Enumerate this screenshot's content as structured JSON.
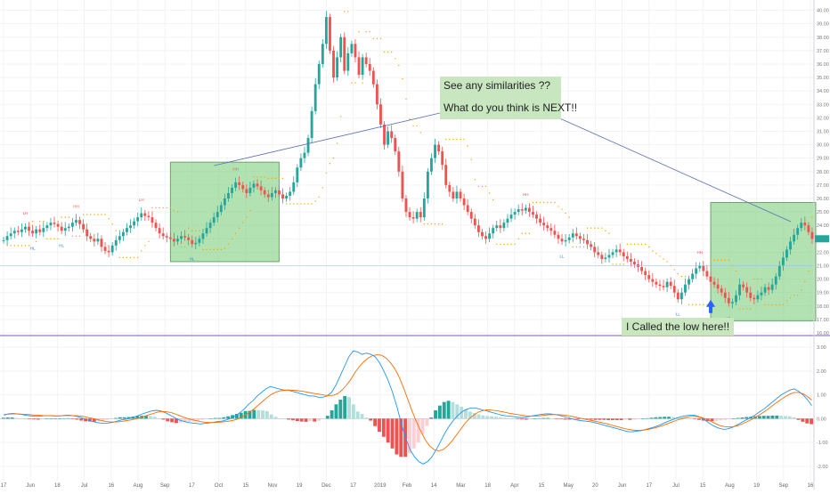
{
  "chart_data": [
    {
      "type": "candlestick",
      "title": "",
      "y_axis_ticks": [
        "40.00",
        "39.00",
        "38.00",
        "37.00",
        "36.00",
        "35.00",
        "34.00",
        "33.00",
        "32.00",
        "31.00",
        "30.00",
        "29.00",
        "28.00",
        "27.00",
        "26.00",
        "25.00",
        "24.00",
        "23.00",
        "22.00",
        "21.00",
        "20.00",
        "19.00",
        "18.00",
        "17.00",
        "16.00"
      ],
      "ylim": [
        16,
        40.5
      ],
      "x_ticks": [
        "17",
        "Jun",
        "18",
        "Jul",
        "16",
        "Aug",
        "Sep",
        "17",
        "Oct",
        "15",
        "Nov",
        "19",
        "Dec",
        "17",
        "2019",
        "Feb",
        "14",
        "Mar",
        "18",
        "Apr",
        "15",
        "May",
        "20",
        "Jun",
        "17",
        "Jul",
        "15",
        "Aug",
        "19",
        "Sep",
        "16"
      ],
      "series": [
        {
          "values": [
            22.9,
            23.2,
            23.4,
            23.6,
            23.5,
            23.7,
            23.9,
            23.6,
            23.4,
            23.7,
            23.5,
            23.8,
            24.0,
            24.2,
            24.1,
            23.9,
            23.6,
            23.8,
            23.9,
            24.2,
            24.4,
            24.1,
            23.7,
            23.2,
            23.0,
            22.8,
            23.0,
            22.4,
            22.1,
            22.0,
            22.5,
            22.9,
            23.2,
            23.5,
            23.8,
            24.0,
            24.3,
            24.6,
            24.9,
            24.7,
            24.6,
            24.2,
            23.8,
            23.4,
            23.2,
            23.1,
            23.0,
            22.8,
            23.0,
            23.2,
            23.1,
            22.9,
            22.6,
            22.7,
            23.0,
            23.4,
            23.8,
            24.2,
            24.6,
            25.0,
            25.5,
            26.0,
            26.4,
            26.8,
            27.2,
            27.0,
            26.7,
            26.4,
            26.8,
            27.1,
            26.9,
            26.6,
            26.3,
            26.1,
            26.4,
            26.6,
            26.3,
            26.0,
            26.2,
            26.5,
            27.2,
            28.3,
            29.0,
            29.4,
            30.5,
            32.5,
            34.5,
            36.0,
            37.5,
            39.5,
            37.0,
            35.0,
            36.5,
            38.0,
            35.5,
            36.8,
            37.5,
            36.5,
            35.2,
            36.5,
            36.0,
            35.5,
            34.5,
            33.0,
            31.5,
            30.0,
            31.0,
            30.5,
            29.5,
            28.0,
            26.0,
            25.0,
            24.6,
            24.5,
            25.0,
            24.6,
            26.0,
            28.0,
            29.0,
            30.0,
            29.5,
            28.5,
            27.0,
            26.5,
            26.0,
            26.5,
            26.0,
            25.5,
            25.0,
            24.5,
            24.0,
            23.5,
            23.2,
            23.0,
            23.4,
            23.8,
            24.0,
            23.8,
            24.2,
            24.5,
            24.8,
            25.0,
            25.2,
            25.1,
            25.3,
            25.0,
            24.8,
            24.5,
            24.2,
            24.0,
            23.8,
            23.6,
            23.3,
            23.0,
            22.8,
            22.9,
            23.1,
            23.4,
            23.2,
            23.0,
            22.9,
            22.6,
            22.4,
            22.0,
            21.8,
            21.5,
            21.6,
            21.8,
            22.0,
            22.2,
            22.0,
            21.7,
            21.5,
            21.3,
            21.1,
            20.9,
            20.6,
            20.3,
            20.0,
            19.8,
            19.6,
            19.5,
            19.4,
            19.8,
            19.5,
            19.0,
            18.5,
            19.0,
            19.6,
            20.0,
            20.4,
            20.8,
            21.0,
            20.6,
            20.2,
            19.8,
            19.6,
            19.3,
            19.0,
            18.6,
            18.2,
            18.3,
            18.8,
            19.6,
            19.4,
            19.0,
            18.6,
            18.5,
            18.8,
            19.0,
            19.4,
            19.2,
            19.6,
            20.2,
            21.0,
            21.6,
            22.2,
            22.8,
            23.3,
            23.8,
            24.2,
            24.0,
            23.5,
            23.0
          ]
        }
      ],
      "annotations": [
        {
          "text_lines": [
            "See any similarities ??",
            "What do you think is NEXT!!"
          ]
        },
        {
          "text": "I Called the low here!!"
        }
      ],
      "pivot_labels": [
        "HH",
        "LH",
        "HL",
        "LL"
      ],
      "colors": {
        "up": "#26a69a",
        "down": "#ef5350",
        "highlight": "#7ecf7e",
        "signal_arrow": "#2962ff",
        "trend_dots": "#f7a600"
      }
    },
    {
      "type": "bar",
      "title": "",
      "y_axis_ticks": [
        "3.00",
        "2.00",
        "1.00",
        "0.00",
        "-1.00",
        "-2.00"
      ],
      "ylim": [
        -2.6,
        3.3
      ],
      "series": [
        {
          "values": [
            0.15,
            0.2,
            0.22,
            0.2,
            0.18,
            0.14,
            0.12,
            0.1,
            0.1,
            0.12,
            0.13,
            0.12,
            0.11,
            0.12,
            0.14,
            0.15,
            0.12,
            0.08,
            0.02,
            -0.05,
            -0.1,
            -0.15,
            -0.18,
            -0.2,
            -0.18,
            -0.15,
            -0.1,
            -0.05,
            -0.02,
            0.02,
            0.08,
            0.15,
            0.22,
            0.28,
            0.33,
            0.35,
            0.32,
            0.25,
            0.15,
            0.05,
            -0.05,
            -0.1,
            -0.15,
            -0.18,
            -0.2,
            -0.22,
            -0.2,
            -0.18,
            -0.15,
            -0.12,
            -0.1,
            -0.05,
            0.02,
            0.12,
            0.25,
            0.4,
            0.6,
            0.75,
            0.95,
            1.1,
            1.25,
            1.35,
            1.3,
            1.25,
            1.2,
            1.2,
            1.15,
            1.1,
            1.05,
            1.0,
            0.95,
            0.95,
            0.9,
            0.9,
            0.95,
            1.1,
            1.4,
            1.8,
            2.2,
            2.6,
            2.85,
            2.8,
            2.7,
            2.75,
            2.7,
            2.6,
            2.35,
            2.0,
            1.6,
            1.1,
            0.5,
            -0.2,
            -0.8,
            -1.3,
            -1.6,
            -1.8,
            -1.9,
            -1.8,
            -1.6,
            -1.3,
            -0.95,
            -0.6,
            -0.3,
            -0.05,
            0.15,
            0.3,
            0.4,
            0.45,
            0.45,
            0.4,
            0.35,
            0.3,
            0.25,
            0.2,
            0.15,
            0.12,
            0.1,
            0.08,
            0.05,
            0.05,
            0.08,
            0.12,
            0.15,
            0.18,
            0.2,
            0.2,
            0.18,
            0.15,
            0.1,
            0.05,
            0.0,
            -0.05,
            -0.08,
            -0.1,
            -0.12,
            -0.15,
            -0.2,
            -0.25,
            -0.3,
            -0.35,
            -0.4,
            -0.45,
            -0.5,
            -0.55,
            -0.55,
            -0.52,
            -0.5,
            -0.45,
            -0.4,
            -0.35,
            -0.28,
            -0.2,
            -0.12,
            -0.05,
            0.02,
            0.08,
            0.12,
            0.15,
            0.15,
            0.1,
            0.0,
            -0.12,
            -0.25,
            -0.35,
            -0.42,
            -0.45,
            -0.42,
            -0.35,
            -0.25,
            -0.15,
            -0.05,
            0.05,
            0.15,
            0.28,
            0.4,
            0.55,
            0.7,
            0.85,
            1.0,
            1.1,
            1.2,
            1.25,
            1.15,
            1.0,
            0.8,
            0.55
          ]
        },
        {
          "values": [
            0.18,
            0.19,
            0.2,
            0.2,
            0.19,
            0.18,
            0.17,
            0.15,
            0.14,
            0.13,
            0.13,
            0.13,
            0.12,
            0.12,
            0.13,
            0.13,
            0.13,
            0.12,
            0.1,
            0.06,
            0.02,
            -0.03,
            -0.07,
            -0.11,
            -0.13,
            -0.14,
            -0.13,
            -0.11,
            -0.08,
            -0.05,
            -0.01,
            0.04,
            0.1,
            0.16,
            0.22,
            0.27,
            0.3,
            0.29,
            0.26,
            0.2,
            0.13,
            0.06,
            0.0,
            -0.05,
            -0.09,
            -0.13,
            -0.15,
            -0.16,
            -0.16,
            -0.15,
            -0.13,
            -0.11,
            -0.08,
            -0.03,
            0.05,
            0.15,
            0.28,
            0.42,
            0.58,
            0.74,
            0.9,
            1.03,
            1.12,
            1.17,
            1.19,
            1.2,
            1.19,
            1.17,
            1.15,
            1.12,
            1.08,
            1.05,
            1.02,
            0.99,
            0.97,
            0.98,
            1.05,
            1.2,
            1.4,
            1.65,
            1.95,
            2.2,
            2.4,
            2.55,
            2.65,
            2.68,
            2.66,
            2.55,
            2.36,
            2.1,
            1.75,
            1.3,
            0.8,
            0.3,
            -0.15,
            -0.55,
            -0.9,
            -1.15,
            -1.3,
            -1.35,
            -1.3,
            -1.15,
            -0.95,
            -0.7,
            -0.45,
            -0.2,
            0.0,
            0.15,
            0.27,
            0.34,
            0.37,
            0.36,
            0.34,
            0.31,
            0.27,
            0.23,
            0.2,
            0.17,
            0.14,
            0.12,
            0.11,
            0.11,
            0.12,
            0.14,
            0.16,
            0.17,
            0.17,
            0.16,
            0.14,
            0.11,
            0.07,
            0.03,
            -0.01,
            -0.05,
            -0.08,
            -0.12,
            -0.16,
            -0.2,
            -0.25,
            -0.3,
            -0.35,
            -0.4,
            -0.44,
            -0.47,
            -0.49,
            -0.49,
            -0.47,
            -0.44,
            -0.4,
            -0.35,
            -0.29,
            -0.22,
            -0.15,
            -0.08,
            -0.02,
            0.04,
            0.08,
            0.1,
            0.09,
            0.05,
            -0.02,
            -0.11,
            -0.2,
            -0.28,
            -0.33,
            -0.35,
            -0.34,
            -0.3,
            -0.23,
            -0.15,
            -0.06,
            0.04,
            0.15,
            0.27,
            0.4,
            0.54,
            0.68,
            0.81,
            0.93,
            1.03,
            1.1,
            1.1,
            1.05,
            0.93,
            0.78
          ]
        }
      ],
      "histogram": [
        0.04,
        0.05,
        0.05,
        0.03,
        0.02,
        0.0,
        -0.02,
        -0.03,
        -0.04,
        -0.02,
        0.0,
        0.0,
        -0.01,
        0.0,
        0.01,
        0.02,
        -0.01,
        -0.04,
        -0.08,
        -0.11,
        -0.12,
        -0.12,
        -0.11,
        -0.09,
        -0.05,
        -0.01,
        0.03,
        0.06,
        0.06,
        0.07,
        0.09,
        0.11,
        0.12,
        0.12,
        0.11,
        0.08,
        0.02,
        -0.04,
        -0.11,
        -0.15,
        -0.18,
        -0.16,
        -0.15,
        -0.13,
        -0.11,
        -0.09,
        -0.05,
        -0.02,
        0.01,
        0.03,
        0.03,
        0.06,
        0.1,
        0.15,
        0.2,
        0.25,
        0.32,
        0.33,
        0.37,
        0.36,
        0.35,
        0.32,
        0.18,
        0.08,
        0.01,
        0.0,
        -0.04,
        -0.07,
        -0.1,
        -0.12,
        -0.13,
        -0.1,
        -0.12,
        -0.09,
        -0.02,
        0.12,
        0.35,
        0.6,
        0.8,
        0.95,
        0.9,
        0.6,
        0.3,
        0.2,
        0.05,
        -0.08,
        -0.31,
        -0.55,
        -0.76,
        -1.0,
        -1.25,
        -1.5,
        -1.6,
        -1.6,
        -1.45,
        -1.25,
        -1.0,
        -0.65,
        -0.3,
        0.05,
        0.35,
        0.55,
        0.7,
        0.75,
        0.7,
        0.6,
        0.5,
        0.4,
        0.3,
        0.24,
        0.18,
        0.14,
        0.11,
        0.1,
        0.08,
        0.06,
        0.04,
        0.03,
        0.01,
        -0.01,
        -0.03,
        -0.04,
        -0.02,
        0.0,
        0.02,
        0.03,
        0.03,
        0.01,
        -0.01,
        -0.02,
        -0.04,
        -0.04,
        -0.03,
        -0.03,
        -0.02,
        -0.02,
        -0.04,
        -0.05,
        -0.05,
        -0.05,
        -0.06,
        -0.06,
        -0.06,
        -0.06,
        -0.05,
        -0.05,
        -0.04,
        -0.02,
        0.0,
        0.02,
        0.04,
        0.06,
        0.07,
        0.08,
        0.08,
        0.07,
        0.06,
        0.05,
        0.04,
        0.02,
        -0.01,
        -0.05,
        -0.08,
        -0.1,
        -0.1,
        -0.09,
        -0.07,
        -0.05,
        -0.02,
        0.0,
        0.03,
        0.05,
        0.07,
        0.08,
        0.1,
        0.11,
        0.12,
        0.12,
        0.13,
        0.13,
        0.12,
        0.11,
        0.1,
        0.05,
        -0.05,
        -0.13,
        -0.2,
        -0.23
      ]
    }
  ]
}
